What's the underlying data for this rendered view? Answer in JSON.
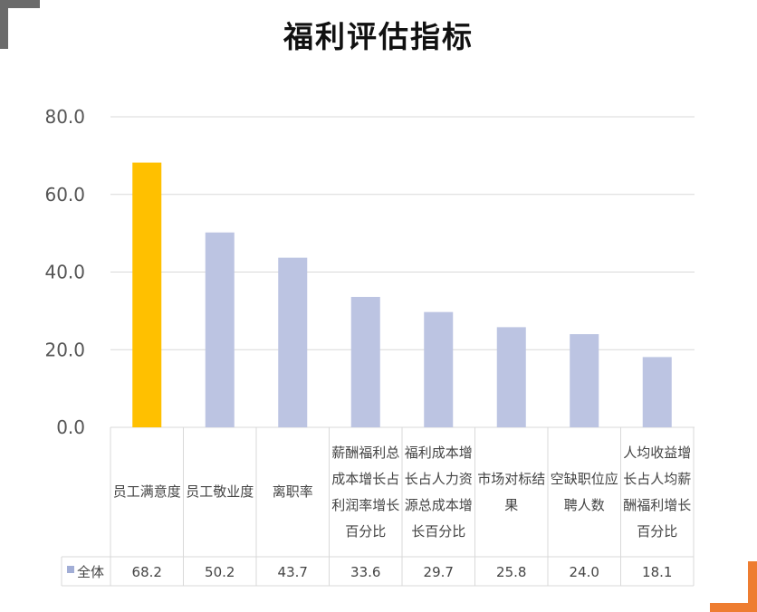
{
  "chart_data": {
    "type": "bar",
    "title": "福利评估指标",
    "categories": [
      "员工满意度",
      "员工敬业度",
      "离职率",
      "薪酬福利总成本增长占利润率增长百分比",
      "福利成本增长占人力资源总成本增长百分比",
      "市场对标结果",
      "空缺职位应聘人数",
      "人均收益增长占人均薪酬福利增长百分比"
    ],
    "series": [
      {
        "name": "全体",
        "values": [
          68.2,
          50.2,
          43.7,
          33.6,
          29.7,
          25.8,
          24.0,
          18.1
        ],
        "value_labels": [
          "68.2",
          "50.2",
          "43.7",
          "33.6",
          "29.7",
          "25.8",
          "24.0",
          "18.1"
        ]
      }
    ],
    "ylim": [
      0,
      80
    ],
    "yticks": [
      "0.0",
      "20.0",
      "40.0",
      "60.0",
      "80.0"
    ],
    "grid": true,
    "data_table": true,
    "colors": {
      "bar": "#bcc4e2",
      "highlight": "#ffc000",
      "grid": "#d9d9d9",
      "table_border": "#d9d9d9",
      "legend_marker": "#a2aed6"
    },
    "highlight_index": 0
  }
}
